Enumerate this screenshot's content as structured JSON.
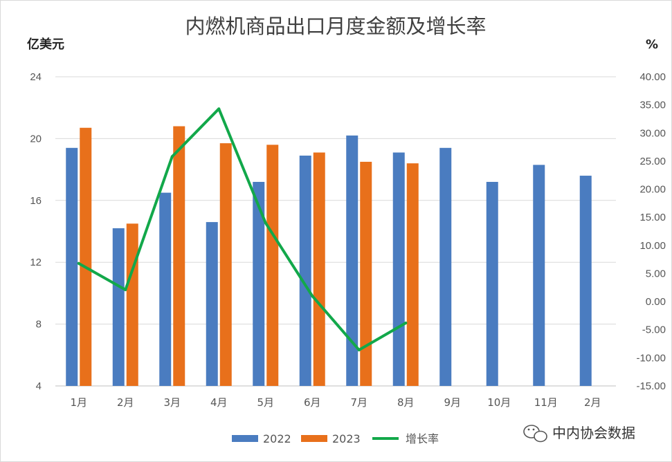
{
  "chart_data": {
    "type": "bar",
    "title": "内燃机商品出口月度金额及增长率",
    "left_unit": "亿美元",
    "right_unit": "%",
    "categories": [
      "1月",
      "2月",
      "3月",
      "4月",
      "5月",
      "6月",
      "7月",
      "8月",
      "9月",
      "10月",
      "11月",
      "2月"
    ],
    "series": [
      {
        "name": "2022",
        "type": "bar",
        "axis": "left",
        "color": "#4a7cc0",
        "values": [
          19.4,
          14.2,
          16.5,
          14.6,
          17.2,
          18.9,
          20.2,
          19.1,
          19.4,
          17.2,
          18.3,
          17.6
        ]
      },
      {
        "name": "2023",
        "type": "bar",
        "axis": "left",
        "color": "#e8701b",
        "values": [
          20.7,
          14.5,
          20.8,
          19.7,
          19.6,
          19.1,
          18.5,
          18.4,
          null,
          null,
          null,
          null
        ]
      },
      {
        "name": "增长率",
        "type": "line",
        "axis": "right",
        "color": "#12a84a",
        "values": [
          6.8,
          2.1,
          25.8,
          34.3,
          14.0,
          1.0,
          -8.6,
          -3.8,
          null,
          null,
          null,
          null
        ]
      }
    ],
    "left_axis": {
      "min": 4,
      "max": 24,
      "step": 4,
      "ticks": [
        "4",
        "8",
        "12",
        "16",
        "20",
        "24"
      ]
    },
    "right_axis": {
      "min": -15,
      "max": 40,
      "step": 5,
      "ticks": [
        "-15.00",
        "-10.00",
        "-5.00",
        "0.00",
        "5.00",
        "10.00",
        "15.00",
        "20.00",
        "25.00",
        "30.00",
        "35.00",
        "40.00"
      ]
    },
    "grid": true,
    "legend_position": "bottom"
  },
  "watermark": {
    "text": "中内协会数据",
    "icon": "wechat-icon"
  }
}
